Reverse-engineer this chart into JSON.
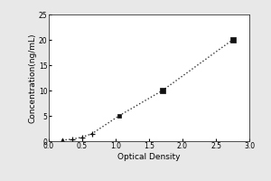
{
  "x_data": [
    0.2,
    0.35,
    0.5,
    0.65,
    1.05,
    1.7,
    2.75
  ],
  "y_data": [
    0.2,
    0.4,
    0.8,
    1.5,
    5.0,
    10.0,
    20.0
  ],
  "xlabel": "Optical Density",
  "ylabel": "Concentration(ng/mL)",
  "xlim": [
    0,
    3
  ],
  "ylim": [
    0,
    25
  ],
  "xticks": [
    0,
    0.5,
    1.0,
    1.5,
    2.0,
    2.5,
    3.0
  ],
  "yticks": [
    0,
    5,
    10,
    15,
    20,
    25
  ],
  "line_color": "#333333",
  "marker_color": "#111111",
  "background_color": "#ffffff",
  "outer_bg": "#e8e8e8",
  "font_size_label": 6.5,
  "font_size_tick": 5.5,
  "markers": [
    "^",
    "+",
    "+",
    "+",
    "s",
    "s",
    "s"
  ],
  "marker_sizes": [
    14,
    20,
    20,
    20,
    12,
    14,
    16
  ]
}
